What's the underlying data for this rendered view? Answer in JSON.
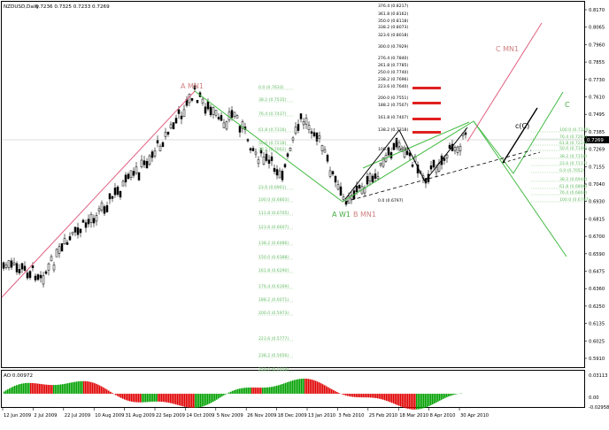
{
  "window": {
    "title": "NZDUSD,Daily",
    "ohlc": "0.7236 0.7325 0.7233 0.7269"
  },
  "indicator": {
    "title": "AO 0.00972",
    "scale": [
      "0.03113",
      "0.00",
      "-0.02958"
    ],
    "up_color": "#00a000",
    "down_color": "#e00000"
  },
  "price_axis": {
    "labels": [
      "0.8170",
      "0.8065",
      "0.7960",
      "0.7855",
      "0.7730",
      "0.7610",
      "0.7495",
      "0.7385",
      "0.7269",
      "0.7155",
      "0.7040",
      "0.6930",
      "0.6815",
      "0.6700",
      "0.6590",
      "0.6475",
      "0.6360",
      "0.6250",
      "0.6135",
      "0.6025",
      "0.5910"
    ],
    "current_price": "0.7269",
    "current_bg": "#000000"
  },
  "time_axis": {
    "labels": [
      "12 Jun 2009",
      "2 Jul 2009",
      "22 Jul 2009",
      "10 Aug 2009",
      "31 Aug 2009",
      "22 Sep 2009",
      "14 Oct 2009",
      "5 Nov 2009",
      "26 Nov 2009",
      "18 Dec 2009",
      "13 Jan 2010",
      "3 Feb 2010",
      "25 Feb 2010",
      "18 Mar 2010",
      "8 Apr 2010",
      "30 Apr 2010"
    ]
  },
  "waves": {
    "a_mn1": "A MN1",
    "a_w1": "A W1",
    "b_mn1": "B MN1",
    "c_mn1": "C MN1",
    "c_label": "C",
    "cc_label": "c(C)"
  },
  "fib_top": [
    "376.4 (0.8217)",
    "361.8 (0.8162)",
    "350.0 (0.8118)",
    "338.2 (0.8073)",
    "323.6 (0.8018)",
    "300.0 (0.7929)",
    "276.4 (0.7840)",
    "261.8 (0.7785)",
    "250.0 (0.7740)",
    "238.2 (0.7696)",
    "223.6 (0.7640)",
    "200.0 (0.7551)",
    "188.2 (0.7507)",
    "161.8 (0.7407)",
    "138.2 (0.7318)",
    "100.0 (0.7174)",
    "0.0 (0.6797)"
  ],
  "fib_left": [
    "0.0 (0.7633)",
    "38.2 (0.7535)",
    "76.4 (0.7437)",
    "61.8 (0.7316)",
    "50.0 (0.7218)",
    "38.2 (0.7062)",
    "23.6 (0.6961)",
    "100.0 (0.6803)",
    "111.8 (0.6705)",
    "123.6 (0.6607)",
    "138.2 (0.6486)",
    "150.0 (0.6388)",
    "161.8 (0.6290)",
    "176.4 (0.6169)",
    "188.2 (0.6071)",
    "200.0 (0.5973)",
    "223.6 (0.5777)",
    "238.2 (0.5656)",
    "250.0 (0.5558)"
  ],
  "fib_right": [
    "100.0 (0.7329)",
    "76.4 (0.7263)",
    "61.8 (0.7224)",
    "50.0 (0.7190)",
    "38.2 (0.7158)",
    "23.6 (0.7117)",
    "0.0 (0.7052)",
    "38.2 (0.6948)",
    "61.8 (0.6896)",
    "76.4 (0.6860)",
    "100.0 (0.6797)"
  ]
}
